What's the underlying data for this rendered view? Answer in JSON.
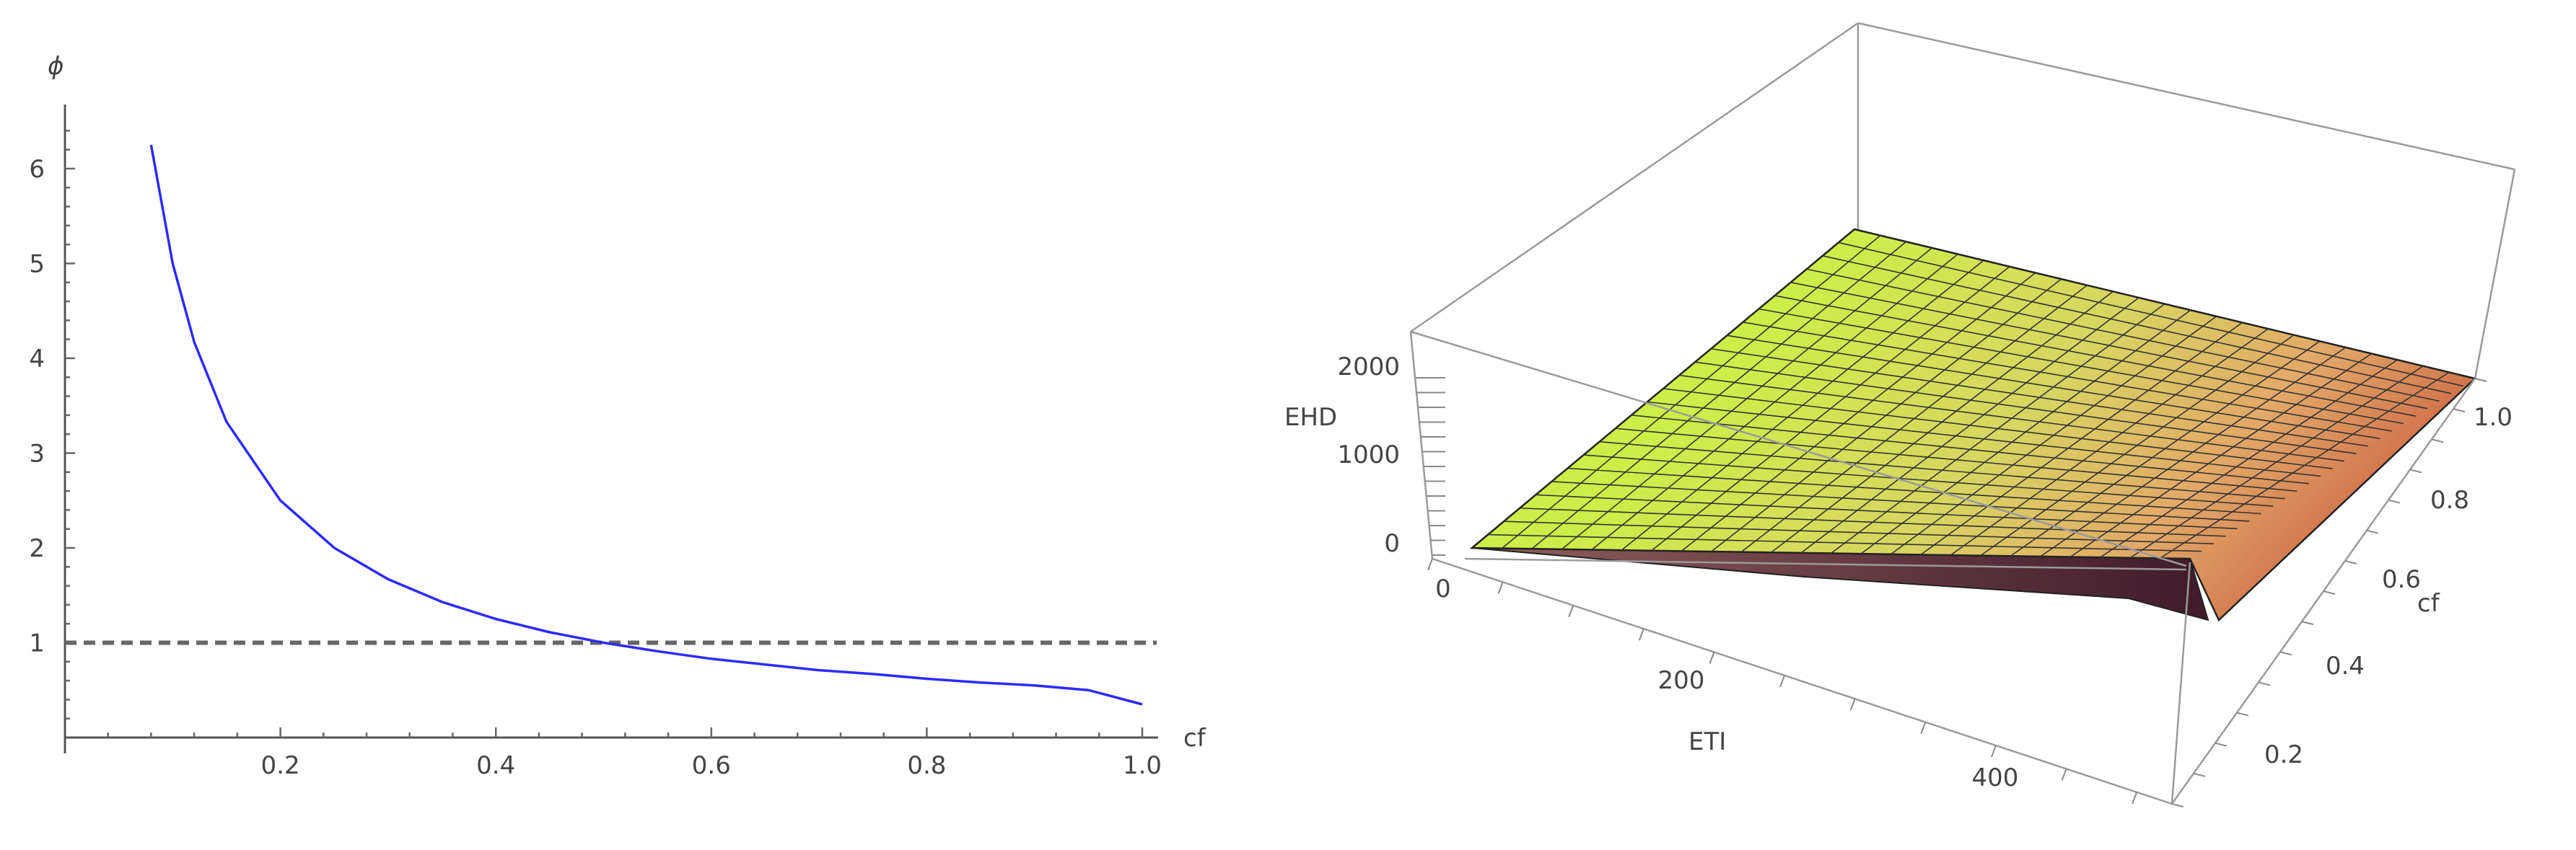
{
  "chart_data": [
    {
      "type": "line",
      "title": "",
      "xlabel": "cf",
      "ylabel": "ϕ",
      "xlim": [
        0.0,
        1.0
      ],
      "ylim": [
        0,
        6.6
      ],
      "x_ticks": [
        "0.2",
        "0.4",
        "0.6",
        "0.8",
        "1.0"
      ],
      "y_ticks": [
        "1",
        "2",
        "3",
        "4",
        "5",
        "6"
      ],
      "grid": false,
      "series": [
        {
          "name": "",
          "color": "#2b2bff",
          "x": [
            0.08,
            0.1,
            0.12,
            0.15,
            0.2,
            0.25,
            0.3,
            0.35,
            0.4,
            0.45,
            0.5,
            0.55,
            0.6,
            0.65,
            0.7,
            0.75,
            0.8,
            0.85,
            0.9,
            0.95,
            1.0
          ],
          "values": [
            6.25,
            5.0,
            4.17,
            3.33,
            2.5,
            2.0,
            1.67,
            1.43,
            1.25,
            1.11,
            1.0,
            0.91,
            0.83,
            0.77,
            0.71,
            0.67,
            0.62,
            0.58,
            0.55,
            0.5,
            0.35
          ]
        }
      ],
      "reference_lines": [
        {
          "orientation": "horizontal",
          "y": 1,
          "style": "dashed",
          "color": "#666666"
        }
      ]
    },
    {
      "type": "surface3d",
      "title": "",
      "xlabel": "ETI",
      "ylabel": "cf",
      "zlabel": "EHD",
      "x_ticks": [
        "0",
        "200",
        "400"
      ],
      "y_ticks": [
        "0.2",
        "0.4",
        "0.6",
        "0.8",
        "1.0"
      ],
      "z_ticks": [
        "0",
        "1000",
        "2000"
      ],
      "colors": {
        "surface_top": "#c8ec4a",
        "surface_mid": "#e8c070",
        "surface_low": "#b06050",
        "surface_under": "#4a1e2e",
        "box": "#999999",
        "mesh": "#333333"
      }
    }
  ]
}
